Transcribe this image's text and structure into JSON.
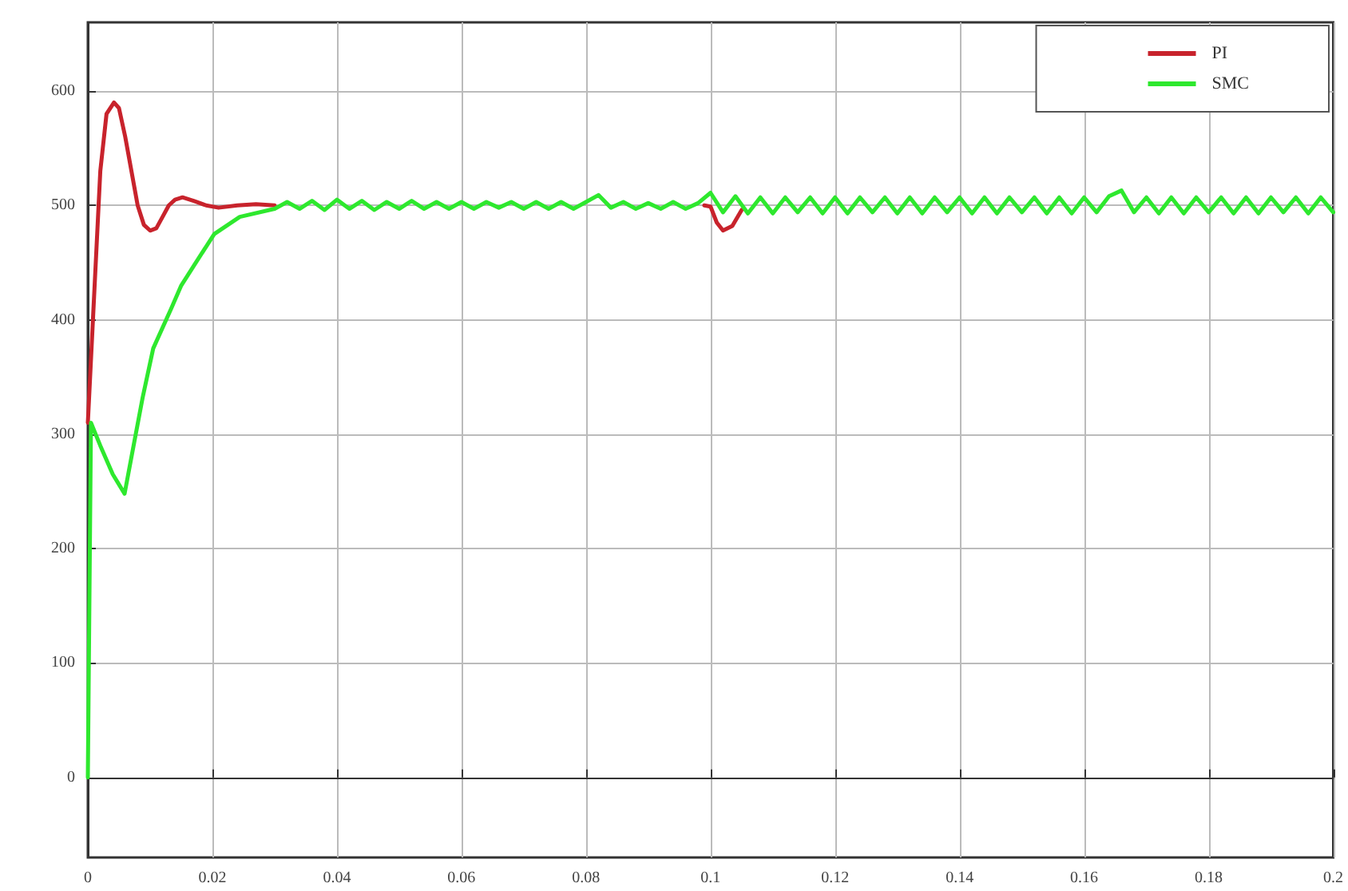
{
  "chart_data": {
    "type": "line",
    "xlim": [
      0,
      0.2
    ],
    "ylim": [
      -70,
      660
    ],
    "xticks": [
      0,
      0.02,
      0.04,
      0.06,
      0.08,
      0.1,
      0.12,
      0.14,
      0.16,
      0.18,
      0.2
    ],
    "yticks": [
      0,
      100,
      200,
      300,
      400,
      500,
      600
    ],
    "grid": true,
    "legend": "top right",
    "marker": "none",
    "line_style": "solid",
    "series": [
      {
        "name": "PI",
        "color": "#c8232c",
        "x": [
          0,
          0.001,
          0.002,
          0.003,
          0.0042,
          0.005,
          0.006,
          0.007,
          0.008,
          0.009,
          0.01,
          0.011,
          0.012,
          0.013,
          0.014,
          0.0152,
          0.017,
          0.019,
          0.021,
          0.024,
          0.027,
          0.03,
          0.032,
          0.099,
          0.1,
          0.101,
          0.102,
          0.1035,
          0.105
        ],
        "values": [
          310,
          420,
          530,
          580,
          590,
          585,
          560,
          530,
          500,
          483,
          478,
          480,
          490,
          500,
          505,
          507,
          504,
          500,
          498,
          500,
          501,
          500,
          null,
          500,
          499,
          485,
          478,
          482,
          496
        ]
      },
      {
        "name": "SMC",
        "color": "#2ee82e",
        "x": [
          0,
          0.0005,
          0.002,
          0.004,
          0.0059,
          0.007,
          0.0088,
          0.0105,
          0.0134,
          0.015,
          0.017,
          0.0203,
          0.0244,
          0.03,
          0.032,
          0.034,
          0.036,
          0.038,
          0.04,
          0.042,
          0.044,
          0.046,
          0.048,
          0.05,
          0.052,
          0.054,
          0.056,
          0.058,
          0.06,
          0.062,
          0.064,
          0.066,
          0.068,
          0.07,
          0.072,
          0.074,
          0.076,
          0.078,
          0.08,
          0.082,
          0.084,
          0.086,
          0.088,
          0.09,
          0.092,
          0.094,
          0.096,
          0.098,
          0.1,
          0.102,
          0.104,
          0.106,
          0.108,
          0.11,
          0.112,
          0.114,
          0.116,
          0.118,
          0.12,
          0.122,
          0.124,
          0.126,
          0.128,
          0.13,
          0.132,
          0.134,
          0.136,
          0.138,
          0.14,
          0.142,
          0.144,
          0.146,
          0.148,
          0.15,
          0.152,
          0.154,
          0.156,
          0.158,
          0.16,
          0.162,
          0.164,
          0.166,
          0.168,
          0.17,
          0.172,
          0.174,
          0.176,
          0.178,
          0.18,
          0.182,
          0.184,
          0.186,
          0.188,
          0.19,
          0.192,
          0.194,
          0.196,
          0.198,
          0.2
        ],
        "values": [
          0,
          310,
          290,
          265,
          248,
          280,
          332,
          375,
          410,
          430,
          447,
          475,
          490,
          497,
          503,
          497,
          504,
          496,
          505,
          497,
          504,
          496,
          503,
          497,
          504,
          497,
          503,
          497,
          503,
          497,
          503,
          498,
          503,
          497,
          503,
          497,
          503,
          497,
          503,
          509,
          498,
          503,
          497,
          502,
          497,
          503,
          497,
          502,
          511,
          494,
          508,
          493,
          507,
          493,
          507,
          494,
          507,
          493,
          507,
          493,
          507,
          494,
          507,
          493,
          507,
          493,
          507,
          494,
          507,
          493,
          507,
          493,
          507,
          494,
          507,
          493,
          507,
          493,
          507,
          494,
          508,
          513,
          494,
          507,
          493,
          507,
          493,
          507,
          494,
          507,
          493,
          507,
          493,
          507,
          494,
          507,
          493,
          507,
          494
        ]
      }
    ]
  }
}
